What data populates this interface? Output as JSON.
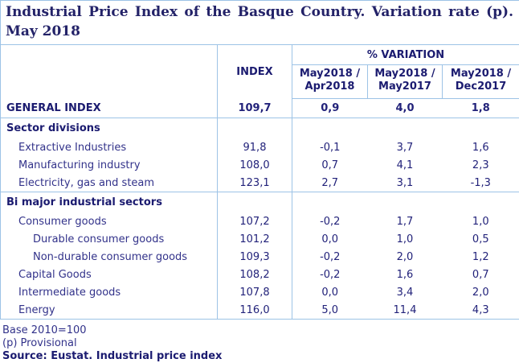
{
  "title": "Industrial Price Index of the Basque Country. Variation rate (p). May 2018",
  "header": {
    "index_label": "INDEX",
    "variation_label": "% VARIATION",
    "variation_columns": [
      "May2018 / Apr2018",
      "May2018 / May2017",
      "May2018 / Dec2017"
    ]
  },
  "rows": [
    {
      "label": "GENERAL INDEX",
      "style": "general",
      "indent": 0,
      "group_end": true,
      "values": [
        "109,7",
        "0,9",
        "4,0",
        "1,8"
      ]
    },
    {
      "label": "Sector divisions",
      "style": "section",
      "indent": 0,
      "group_end": false,
      "values": [
        "",
        "",
        "",
        ""
      ]
    },
    {
      "label": "Extractive Industries",
      "style": "item",
      "indent": 1,
      "group_end": false,
      "values": [
        "91,8",
        "-0,1",
        "3,7",
        "1,6"
      ]
    },
    {
      "label": "Manufacturing industry",
      "style": "item",
      "indent": 1,
      "group_end": false,
      "values": [
        "108,0",
        "0,7",
        "4,1",
        "2,3"
      ]
    },
    {
      "label": "Electricity, gas and steam",
      "style": "item",
      "indent": 1,
      "group_end": true,
      "values": [
        "123,1",
        "2,7",
        "3,1",
        "-1,3"
      ]
    },
    {
      "label": "Bi major industrial sectors",
      "style": "section",
      "indent": 0,
      "group_end": false,
      "values": [
        "",
        "",
        "",
        ""
      ]
    },
    {
      "label": "Consumer goods",
      "style": "item",
      "indent": 1,
      "group_end": false,
      "values": [
        "107,2",
        "-0,2",
        "1,7",
        "1,0"
      ]
    },
    {
      "label": "Durable consumer goods",
      "style": "item",
      "indent": 2,
      "group_end": false,
      "values": [
        "101,2",
        "0,0",
        "1,0",
        "0,5"
      ]
    },
    {
      "label": "Non-durable consumer goods",
      "style": "item",
      "indent": 2,
      "group_end": false,
      "values": [
        "109,3",
        "-0,2",
        "2,0",
        "1,2"
      ]
    },
    {
      "label": "Capital Goods",
      "style": "item",
      "indent": 1,
      "group_end": false,
      "values": [
        "108,2",
        "-0,2",
        "1,6",
        "0,7"
      ]
    },
    {
      "label": "Intermediate goods",
      "style": "item",
      "indent": 1,
      "group_end": false,
      "values": [
        "107,8",
        "0,0",
        "3,4",
        "2,0"
      ]
    },
    {
      "label": "Energy",
      "style": "item",
      "indent": 1,
      "group_end": false,
      "values": [
        "116,0",
        "5,0",
        "11,4",
        "4,3"
      ]
    }
  ],
  "footnotes": [
    "Base 2010=100",
    "(p) Provisional"
  ],
  "source": "Source: Eustat. Industrial price index",
  "colors": {
    "border": "#9dc3e6",
    "title_text": "#232268",
    "bold_text": "#1b1b70",
    "label_text": "#32328a",
    "number_text": "#22227a",
    "background": "#ffffff"
  },
  "chart_data": {
    "type": "table",
    "title": "Industrial Price Index of the Basque Country. Variation rate (p). May 2018",
    "columns": [
      "INDEX",
      "% VARIATION May2018 / Apr2018",
      "% VARIATION May2018 / May2017",
      "% VARIATION May2018 / Dec2017"
    ],
    "rows": [
      {
        "label": "GENERAL INDEX",
        "group": null,
        "index": 109.7,
        "var_vs_apr2018": 0.9,
        "var_vs_may2017": 4.0,
        "var_vs_dec2017": 1.8
      },
      {
        "label": "Extractive Industries",
        "group": "Sector divisions",
        "index": 91.8,
        "var_vs_apr2018": -0.1,
        "var_vs_may2017": 3.7,
        "var_vs_dec2017": 1.6
      },
      {
        "label": "Manufacturing industry",
        "group": "Sector divisions",
        "index": 108.0,
        "var_vs_apr2018": 0.7,
        "var_vs_may2017": 4.1,
        "var_vs_dec2017": 2.3
      },
      {
        "label": "Electricity, gas and steam",
        "group": "Sector divisions",
        "index": 123.1,
        "var_vs_apr2018": 2.7,
        "var_vs_may2017": 3.1,
        "var_vs_dec2017": -1.3
      },
      {
        "label": "Consumer goods",
        "group": "Bi major industrial sectors",
        "index": 107.2,
        "var_vs_apr2018": -0.2,
        "var_vs_may2017": 1.7,
        "var_vs_dec2017": 1.0
      },
      {
        "label": "Durable consumer goods",
        "group": "Bi major industrial sectors / Consumer goods",
        "index": 101.2,
        "var_vs_apr2018": 0.0,
        "var_vs_may2017": 1.0,
        "var_vs_dec2017": 0.5
      },
      {
        "label": "Non-durable consumer goods",
        "group": "Bi major industrial sectors / Consumer goods",
        "index": 109.3,
        "var_vs_apr2018": -0.2,
        "var_vs_may2017": 2.0,
        "var_vs_dec2017": 1.2
      },
      {
        "label": "Capital Goods",
        "group": "Bi major industrial sectors",
        "index": 108.2,
        "var_vs_apr2018": -0.2,
        "var_vs_may2017": 1.6,
        "var_vs_dec2017": 0.7
      },
      {
        "label": "Intermediate goods",
        "group": "Bi major industrial sectors",
        "index": 107.8,
        "var_vs_apr2018": 0.0,
        "var_vs_may2017": 3.4,
        "var_vs_dec2017": 2.0
      },
      {
        "label": "Energy",
        "group": "Bi major industrial sectors",
        "index": 116.0,
        "var_vs_apr2018": 5.0,
        "var_vs_may2017": 11.4,
        "var_vs_dec2017": 4.3
      }
    ],
    "notes": [
      "Base 2010=100",
      "(p) Provisional"
    ],
    "source": "Source: Eustat. Industrial price index"
  }
}
